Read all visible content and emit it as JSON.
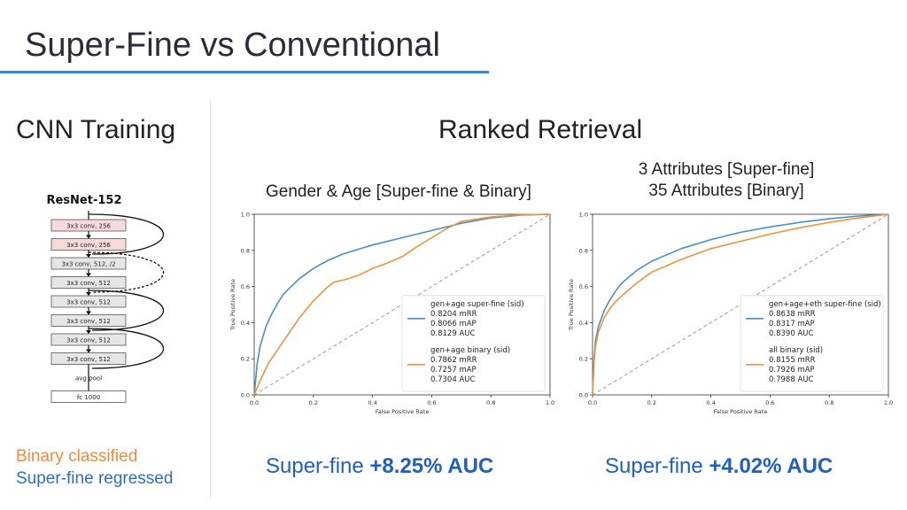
{
  "slide": {
    "title": "Super-Fine vs Conventional",
    "cnn_heading": "CNN Training",
    "retrieval_heading": "Ranked Retrieval",
    "legend": {
      "binary": "Binary classified",
      "superfine": "Super-fine regressed",
      "binary_color": "#f08a3c",
      "superfine_color": "#2a6fbf"
    },
    "accent": "#2b8fd8"
  },
  "resnet": {
    "title": "ResNet-152",
    "layers": [
      {
        "label": "3x3 conv, 256",
        "fill": "#f6d9d9"
      },
      {
        "label": "3x3 conv, 256",
        "fill": "#f6d9d9"
      },
      {
        "label": "3x3 conv, 512, /2",
        "fill": "#e6e6e6"
      },
      {
        "label": "3x3 conv, 512",
        "fill": "#e6e6e6"
      },
      {
        "label": "3x3 conv, 512",
        "fill": "#e6e6e6"
      },
      {
        "label": "3x3 conv, 512",
        "fill": "#e6e6e6"
      },
      {
        "label": "3x3 conv, 512",
        "fill": "#e6e6e6"
      },
      {
        "label": "3x3 conv, 512",
        "fill": "#e6e6e6"
      }
    ],
    "pool_label": "avg pool",
    "fc_label": "fc 1000"
  },
  "panels": [
    {
      "subtitle_lines": [
        "Gender & Age [Super-fine & Binary]"
      ],
      "auc_prefix": "Super-fine ",
      "auc_value": "+8.25% AUC"
    },
    {
      "subtitle_lines": [
        "3 Attributes [Super-fine]",
        "35 Attributes [Binary]"
      ],
      "auc_prefix": "Super-fine ",
      "auc_value": "+4.02% AUC"
    }
  ],
  "chart_data": [
    {
      "type": "line",
      "xlabel": "False Positive Rate",
      "ylabel": "True Positive Rate",
      "xlim": [
        0,
        1
      ],
      "ylim": [
        0,
        1
      ],
      "xticks": [
        "0.0",
        "0.2",
        "0.4",
        "0.6",
        "0.8",
        "1.0"
      ],
      "yticks": [
        "0.0",
        "0.2",
        "0.4",
        "0.6",
        "0.8",
        "1.0"
      ],
      "grid": false,
      "legend_position": "lower-right",
      "diagonal": true,
      "series": [
        {
          "name": "gen+age super-fine (sid)",
          "stats": [
            "0.8204 mRR",
            "0.8066 mAP",
            "0.8129 AUC"
          ],
          "color": "#4c8ec4",
          "x": [
            0,
            0.01,
            0.02,
            0.04,
            0.06,
            0.08,
            0.1,
            0.15,
            0.2,
            0.25,
            0.3,
            0.4,
            0.5,
            0.6,
            0.7,
            0.8,
            0.9,
            1.0
          ],
          "y": [
            0,
            0.17,
            0.27,
            0.38,
            0.45,
            0.51,
            0.56,
            0.64,
            0.7,
            0.745,
            0.78,
            0.83,
            0.87,
            0.91,
            0.95,
            0.98,
            0.995,
            1.0
          ]
        },
        {
          "name": "gen+age binary (sid)",
          "stats": [
            "0.7862 mRR",
            "0.7257 mAP",
            "0.7304 AUC"
          ],
          "color": "#f0923a",
          "x": [
            0,
            0.02,
            0.05,
            0.1,
            0.15,
            0.2,
            0.25,
            0.27,
            0.3,
            0.35,
            0.4,
            0.45,
            0.5,
            0.55,
            0.6,
            0.65,
            0.7,
            0.8,
            0.9,
            1.0
          ],
          "y": [
            0,
            0.08,
            0.18,
            0.3,
            0.42,
            0.52,
            0.6,
            0.625,
            0.635,
            0.66,
            0.7,
            0.73,
            0.765,
            0.82,
            0.87,
            0.92,
            0.96,
            0.985,
            0.997,
            1.0
          ]
        }
      ]
    },
    {
      "type": "line",
      "xlabel": "False Positive Rate",
      "ylabel": "True Positive Rate",
      "xlim": [
        0,
        1
      ],
      "ylim": [
        0,
        1
      ],
      "xticks": [
        "0.0",
        "0.2",
        "0.4",
        "0.6",
        "0.8",
        "1.0"
      ],
      "yticks": [
        "0.0",
        "0.2",
        "0.4",
        "0.6",
        "0.8",
        "1.0"
      ],
      "grid": false,
      "legend_position": "lower-right",
      "diagonal": true,
      "series": [
        {
          "name": "gen+age+eth super-fine (sid)",
          "stats": [
            "0.8638 mRR",
            "0.8317 mAP",
            "0.8390 AUC"
          ],
          "color": "#4c8ec4",
          "x": [
            0,
            0.005,
            0.01,
            0.02,
            0.04,
            0.06,
            0.08,
            0.1,
            0.15,
            0.2,
            0.3,
            0.4,
            0.5,
            0.6,
            0.7,
            0.8,
            0.9,
            1.0
          ],
          "y": [
            0,
            0.2,
            0.3,
            0.38,
            0.47,
            0.53,
            0.58,
            0.62,
            0.69,
            0.74,
            0.81,
            0.86,
            0.9,
            0.93,
            0.955,
            0.975,
            0.99,
            1.0
          ]
        },
        {
          "name": "all binary (sid)",
          "stats": [
            "0.8155 mRR",
            "0.7926 mAP",
            "0.7988 AUC"
          ],
          "color": "#f0923a",
          "x": [
            0,
            0.005,
            0.01,
            0.02,
            0.04,
            0.06,
            0.08,
            0.1,
            0.15,
            0.2,
            0.3,
            0.4,
            0.5,
            0.6,
            0.7,
            0.8,
            0.9,
            1.0
          ],
          "y": [
            0,
            0.18,
            0.27,
            0.35,
            0.43,
            0.48,
            0.52,
            0.55,
            0.62,
            0.68,
            0.75,
            0.81,
            0.85,
            0.89,
            0.925,
            0.955,
            0.98,
            1.0
          ]
        }
      ]
    }
  ]
}
